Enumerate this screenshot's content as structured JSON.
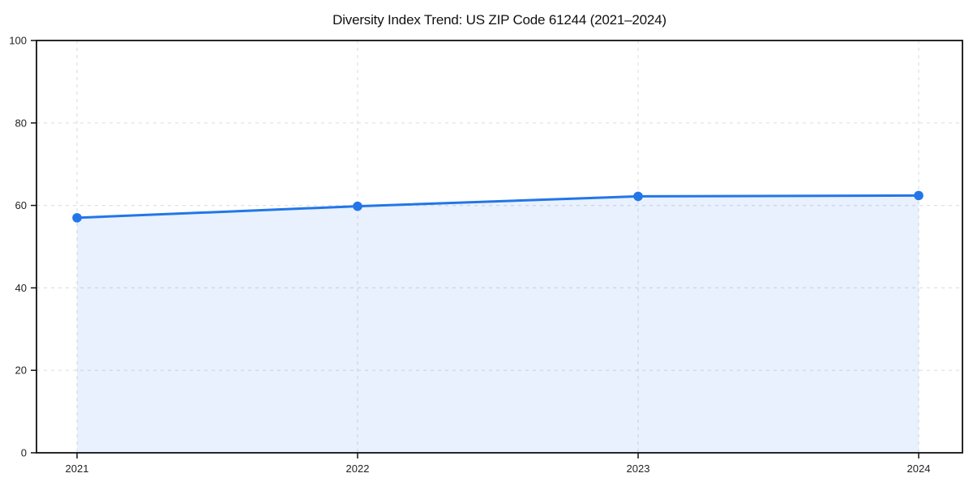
{
  "page": {
    "background": "#ffffff"
  },
  "chart_data": {
    "type": "area",
    "title": "Diversity Index Trend: US ZIP Code 61244 (2021–2024)",
    "categories": [
      "2021",
      "2022",
      "2023",
      "2024"
    ],
    "series": [
      {
        "name": "Diversity Index",
        "values": [
          57.0,
          59.8,
          62.2,
          62.4
        ]
      }
    ],
    "xlabel": "",
    "ylabel": "",
    "ylim": [
      0,
      100
    ],
    "yticks": [
      0,
      20,
      40,
      60,
      80,
      100
    ],
    "grid": "dashed-both-axes",
    "legend": "none",
    "marker": "circle",
    "colors": {
      "line": "#2276e8",
      "marker": "#2276e8",
      "fill": "#2276e81a",
      "gridline": "#e0e0e0",
      "spine": "#111111",
      "tick_text": "#1f1f1f",
      "title_text": "#111111"
    }
  }
}
